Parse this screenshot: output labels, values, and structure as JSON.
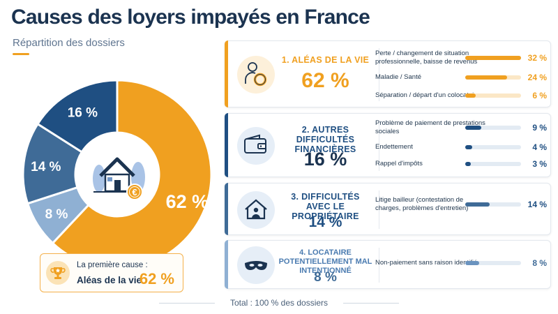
{
  "title": "Causes des loyers impayés en France",
  "subtitle": "Répartition des dossiers",
  "colors": {
    "orange": "#f0a020",
    "navy": "#1f4f82",
    "steel": "#3f6b97",
    "light": "#8fb0d3"
  },
  "chart_data": {
    "type": "pie",
    "donut": true,
    "slices": [
      {
        "label": "62 %",
        "value": 62,
        "color": "#f0a020"
      },
      {
        "label": "8 %",
        "value": 8,
        "color": "#8fb0d3"
      },
      {
        "label": "14 %",
        "value": 14,
        "color": "#3f6b97"
      },
      {
        "label": "16 %",
        "value": 16,
        "color": "#1f4f82"
      }
    ]
  },
  "callout": {
    "line1": "La première cause :",
    "line2": "Aléas de la vie",
    "pct": "62 %"
  },
  "cards": [
    {
      "title": "1. Aléas de la vie",
      "pct": "62 %",
      "icon": "person-lifebuoy-icon",
      "rows": [
        {
          "label": "Perte / changement de situation professionnelle, baisse de revenus",
          "value": 32,
          "display": "32 %"
        },
        {
          "label": "Maladie / Santé",
          "value": 24,
          "display": "24 %"
        },
        {
          "label": "Séparation / départ d'un colocataire",
          "value": 6,
          "display": "6 %"
        }
      ]
    },
    {
      "title": "2. Autres difficultés financières",
      "pct": "16 %",
      "icon": "wallet-icon",
      "rows": [
        {
          "label": "Problème de paiement de prestations sociales",
          "value": 9,
          "display": "9 %"
        },
        {
          "label": "Endettement",
          "value": 4,
          "display": "4 %"
        },
        {
          "label": "Rappel d'impôts",
          "value": 3,
          "display": "3 %"
        }
      ]
    },
    {
      "title": "3. Difficultés avec le propriétaire",
      "pct": "14 %",
      "icon": "house-person-icon",
      "rows": [
        {
          "label": "Litige bailleur (contestation de charges, problèmes d'entretien)",
          "value": 14,
          "display": "14 %"
        }
      ]
    },
    {
      "title": "4. Locataire potentiellement mal intentionné",
      "pct": "8 %",
      "icon": "mask-icon",
      "rows": [
        {
          "label": "Non-paiement sans raison identifiée",
          "value": 8,
          "display": "8 %"
        }
      ]
    }
  ],
  "footer": "Total : 100 % des dossiers"
}
